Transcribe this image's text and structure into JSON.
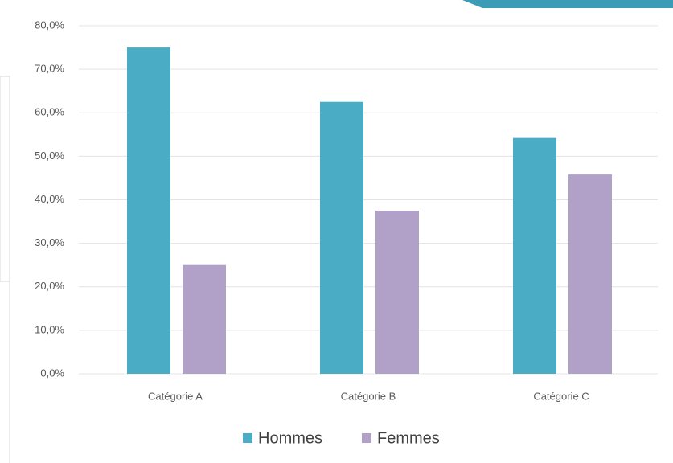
{
  "chart_data": {
    "type": "bar",
    "categories": [
      "Catégorie A",
      "Catégorie B",
      "Catégorie C"
    ],
    "series": [
      {
        "name": "Hommes",
        "color": "#4bacc6",
        "values": [
          75,
          62.5,
          54.2
        ]
      },
      {
        "name": "Femmes",
        "color": "#b1a0c7",
        "values": [
          25,
          37.5,
          45.8
        ]
      }
    ],
    "ylim": [
      0,
      80
    ],
    "yticks": [
      {
        "value": 0,
        "label": "0,0%"
      },
      {
        "value": 10,
        "label": "10,0%"
      },
      {
        "value": 20,
        "label": "20,0%"
      },
      {
        "value": 30,
        "label": "30,0%"
      },
      {
        "value": 40,
        "label": "40,0%"
      },
      {
        "value": 50,
        "label": "50,0%"
      },
      {
        "value": 60,
        "label": "60,0%"
      },
      {
        "value": 70,
        "label": "70,0%"
      },
      {
        "value": 80,
        "label": "80,0%"
      }
    ],
    "grid": true,
    "legend": "bottom"
  }
}
